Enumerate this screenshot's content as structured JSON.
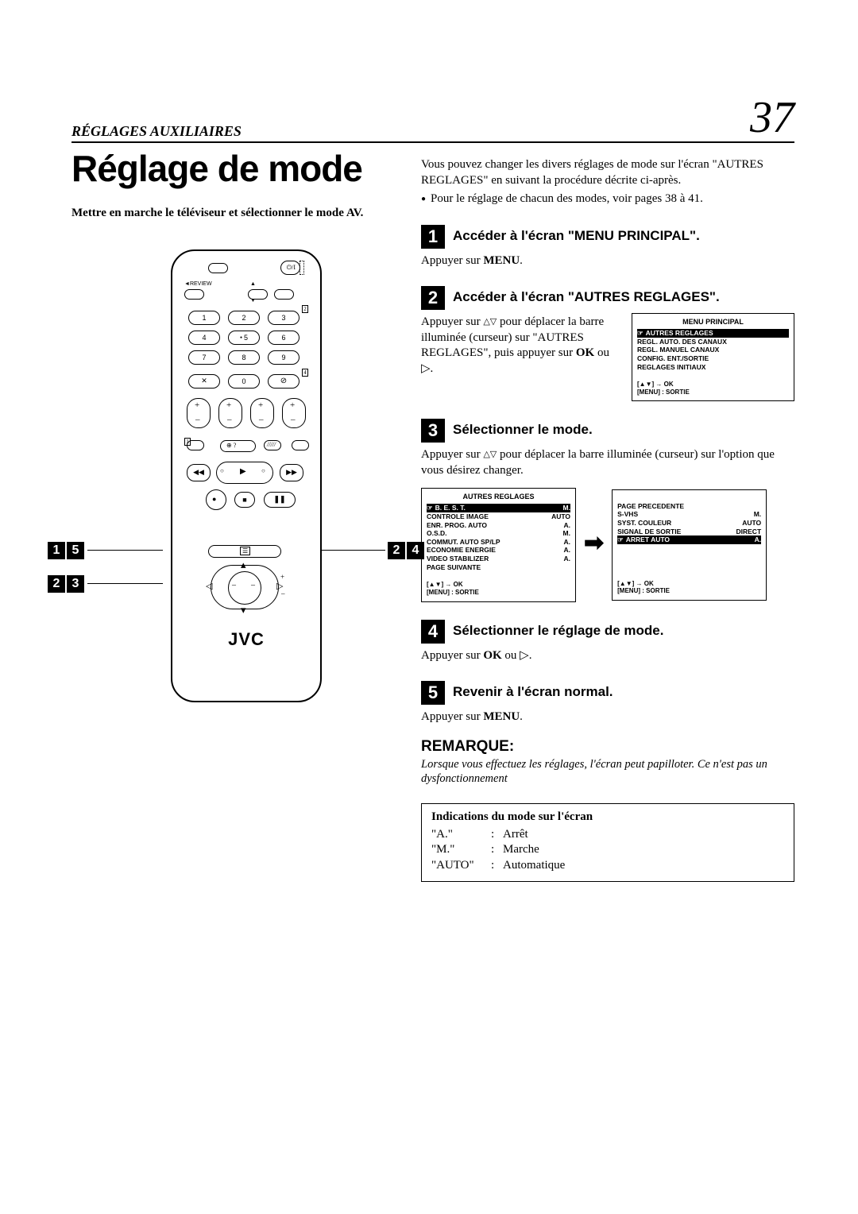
{
  "header": {
    "section": "RÉGLAGES AUXILIAIRES",
    "page": "37"
  },
  "title": "Réglage de mode",
  "intro_bold": "Mettre en marche le téléviseur et sélectionner le mode AV.",
  "remote": {
    "brand": "JVC",
    "review": "REVIEW"
  },
  "callouts": {
    "a1": "1",
    "a5": "5",
    "b2": "2",
    "b4": "4",
    "c2": "2",
    "c3": "3"
  },
  "intro_para": "Vous pouvez changer les divers réglages de mode sur l'écran \"AUTRES REGLAGES\" en suivant la procédure décrite ci-après.",
  "intro_bullet": "Pour le réglage de chacun des modes, voir pages 38 à 41.",
  "steps": {
    "s1": {
      "num": "1",
      "head": "Accéder à l'écran \"MENU PRINCIPAL\".",
      "body_pre": "Appuyer sur ",
      "body_bold": "MENU",
      "body_post": "."
    },
    "s2": {
      "num": "2",
      "head": "Accéder à l'écran \"AUTRES REGLAGES\".",
      "body_pre": "Appuyer sur ",
      "body_mid": " pour déplacer la barre illuminée (curseur) sur \"AUTRES REGLAGES\", puis appuyer sur ",
      "body_bold": "OK",
      "body_post": " ou ▷."
    },
    "s3": {
      "num": "3",
      "head": "Sélectionner le mode.",
      "body_pre": "Appuyer sur ",
      "body_post": " pour déplacer la barre illuminée (curseur) sur l'option que vous désirez changer."
    },
    "s4": {
      "num": "4",
      "head": "Sélectionner le réglage de mode.",
      "body_pre": "Appuyer sur ",
      "body_bold": "OK",
      "body_post": " ou ▷."
    },
    "s5": {
      "num": "5",
      "head": "Revenir à l'écran normal.",
      "body_pre": "Appuyer sur ",
      "body_bold": "MENU",
      "body_post": "."
    }
  },
  "menu_principal": {
    "title": "MENU PRINCIPAL",
    "rows": [
      {
        "label": "AUTRES REGLAGES",
        "hl": true,
        "ptr": true
      },
      {
        "label": "REGL. AUTO. DES CANAUX"
      },
      {
        "label": "REGL. MANUEL CANAUX"
      },
      {
        "label": "CONFIG. ENT./SORTIE"
      },
      {
        "label": "REGLAGES INITIAUX"
      }
    ],
    "foot1": "[▲▼] → OK",
    "foot2": "[MENU] : SORTIE"
  },
  "autres1": {
    "title": "AUTRES REGLAGES",
    "rows": [
      {
        "label": "B. E. S. T.",
        "val": "M.",
        "hl": true,
        "ptr": true
      },
      {
        "label": "CONTROLE IMAGE",
        "val": "AUTO"
      },
      {
        "label": "ENR. PROG. AUTO",
        "val": "A."
      },
      {
        "label": "O.S.D.",
        "val": "M."
      },
      {
        "label": "COMMUT. AUTO SP/LP",
        "val": "A."
      },
      {
        "label": "ECONOMIE ENERGIE",
        "val": "A."
      },
      {
        "label": "VIDEO STABILIZER",
        "val": "A."
      },
      {
        "label": "PAGE SUIVANTE",
        "val": ""
      }
    ],
    "foot1": "[▲▼] → OK",
    "foot2": "[MENU] : SORTIE"
  },
  "autres2": {
    "rows": [
      {
        "label": "PAGE PRECEDENTE",
        "val": ""
      },
      {
        "label": "S-VHS",
        "val": "M."
      },
      {
        "label": "SYST. COULEUR",
        "val": "AUTO"
      },
      {
        "label": "SIGNAL DE SORTIE",
        "val": "DIRECT"
      },
      {
        "label": "ARRET AUTO",
        "val": "A.",
        "hl": true,
        "ptr": true
      }
    ],
    "foot1": "[▲▼] → OK",
    "foot2": "[MENU] : SORTIE"
  },
  "remarque": {
    "title": "REMARQUE:",
    "body": "Lorsque vous effectuez les réglages, l'écran peut papilloter. Ce n'est pas un dysfonctionnement"
  },
  "indications": {
    "title": "Indications du mode sur l'écran",
    "rows": [
      {
        "k": "\"A.\"",
        "v": "Arrêt"
      },
      {
        "k": "\"M.\"",
        "v": "Marche"
      },
      {
        "k": "\"AUTO\"",
        "v": "Automatique"
      }
    ]
  }
}
